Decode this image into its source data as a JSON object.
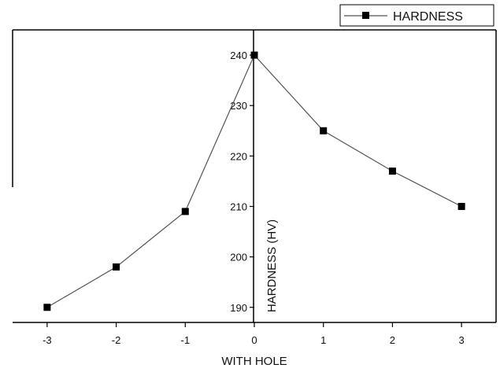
{
  "chart_data": {
    "type": "line",
    "title": "",
    "xlabel": "WITH HOLE",
    "ylabel": "HARDNESS (HV)",
    "x": [
      -3,
      -2,
      -1,
      0,
      1,
      2,
      3
    ],
    "series": [
      {
        "name": "HARDNESS",
        "values": [
          190,
          198,
          209,
          240,
          225,
          217,
          210
        ]
      }
    ],
    "xticks": [
      -3,
      -2,
      -1,
      0,
      1,
      2,
      3
    ],
    "xtick_labels": [
      "-3",
      "-2",
      "-1",
      "0",
      "1",
      "2",
      "3"
    ],
    "yticks": [
      190,
      200,
      210,
      220,
      230,
      240
    ],
    "ytick_labels": [
      "190",
      "200",
      "210",
      "220",
      "230",
      "240"
    ],
    "xlim": [
      -3.5,
      3.5
    ],
    "ylim": [
      187,
      245
    ],
    "grid": false,
    "legend_position": "top-right",
    "colors": {
      "line": "#555555",
      "marker": "#000000",
      "axis": "#000000"
    }
  }
}
